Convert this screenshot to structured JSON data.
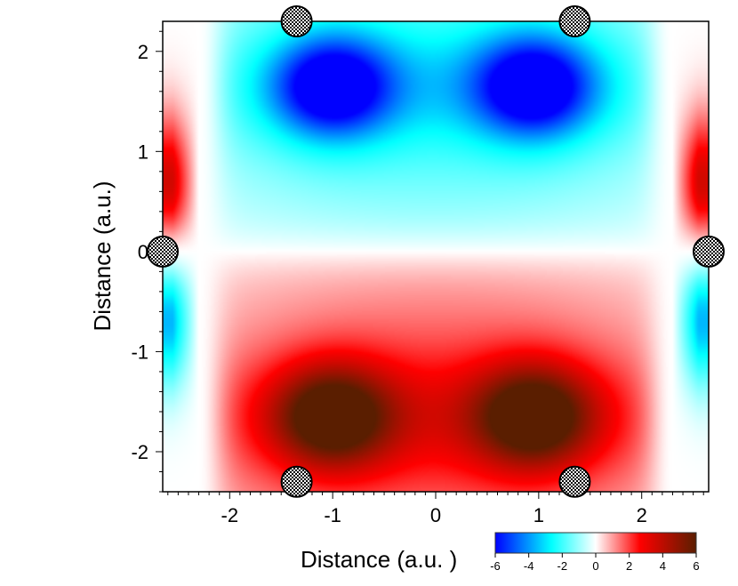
{
  "chart_data": {
    "type": "heatmap",
    "xlabel": "Distance (a.u.  )",
    "ylabel": "Distance (a.u.)",
    "xlim": [
      -2.65,
      2.65
    ],
    "ylim": [
      -2.4,
      2.3
    ],
    "x_ticks": [
      -2,
      -1,
      0,
      1,
      2
    ],
    "x_tick_labels": [
      "-2",
      "-1",
      "0",
      "1",
      "2"
    ],
    "y_ticks": [
      2,
      1,
      0,
      -1,
      -2
    ],
    "y_tick_labels": [
      "2",
      "1",
      "0",
      "-1",
      "-2"
    ],
    "field": {
      "description_values": "antisymmetric in y: negative (blue) above y=0, positive (red) below y=0; sign flips near |x|=2.3",
      "min": -6,
      "max": 6,
      "features": [
        {
          "x": -1.05,
          "y": 1.65,
          "value": -5.5
        },
        {
          "x": 1.0,
          "y": 1.65,
          "value": -5.5
        },
        {
          "x": -1.05,
          "y": -1.65,
          "value": 6
        },
        {
          "x": 1.0,
          "y": -1.65,
          "value": 6
        },
        {
          "x": -2.65,
          "y": 0.65,
          "value": 4
        },
        {
          "x": 2.65,
          "y": 0.65,
          "value": 4
        },
        {
          "x": -2.65,
          "y": -0.65,
          "value": -4
        },
        {
          "x": 2.65,
          "y": -0.65,
          "value": -4
        }
      ]
    },
    "atoms": [
      {
        "x": -1.35,
        "y": 2.3
      },
      {
        "x": 1.35,
        "y": 2.3
      },
      {
        "x": -2.65,
        "y": 0
      },
      {
        "x": 2.65,
        "y": 0
      },
      {
        "x": -1.35,
        "y": -2.3
      },
      {
        "x": 1.35,
        "y": -2.3
      }
    ],
    "colorbar": {
      "ticks": [
        -6,
        -4,
        -2,
        0,
        2,
        4,
        6
      ],
      "tick_labels": [
        "-6",
        "-4",
        "-2",
        "0",
        "2",
        "4",
        "6"
      ],
      "colors": [
        "#0000ff",
        "#00ffff",
        "#ffffff",
        "#ff0000",
        "#5a1e00"
      ]
    },
    "grid": false,
    "legend": "colorbar bottom-right"
  }
}
